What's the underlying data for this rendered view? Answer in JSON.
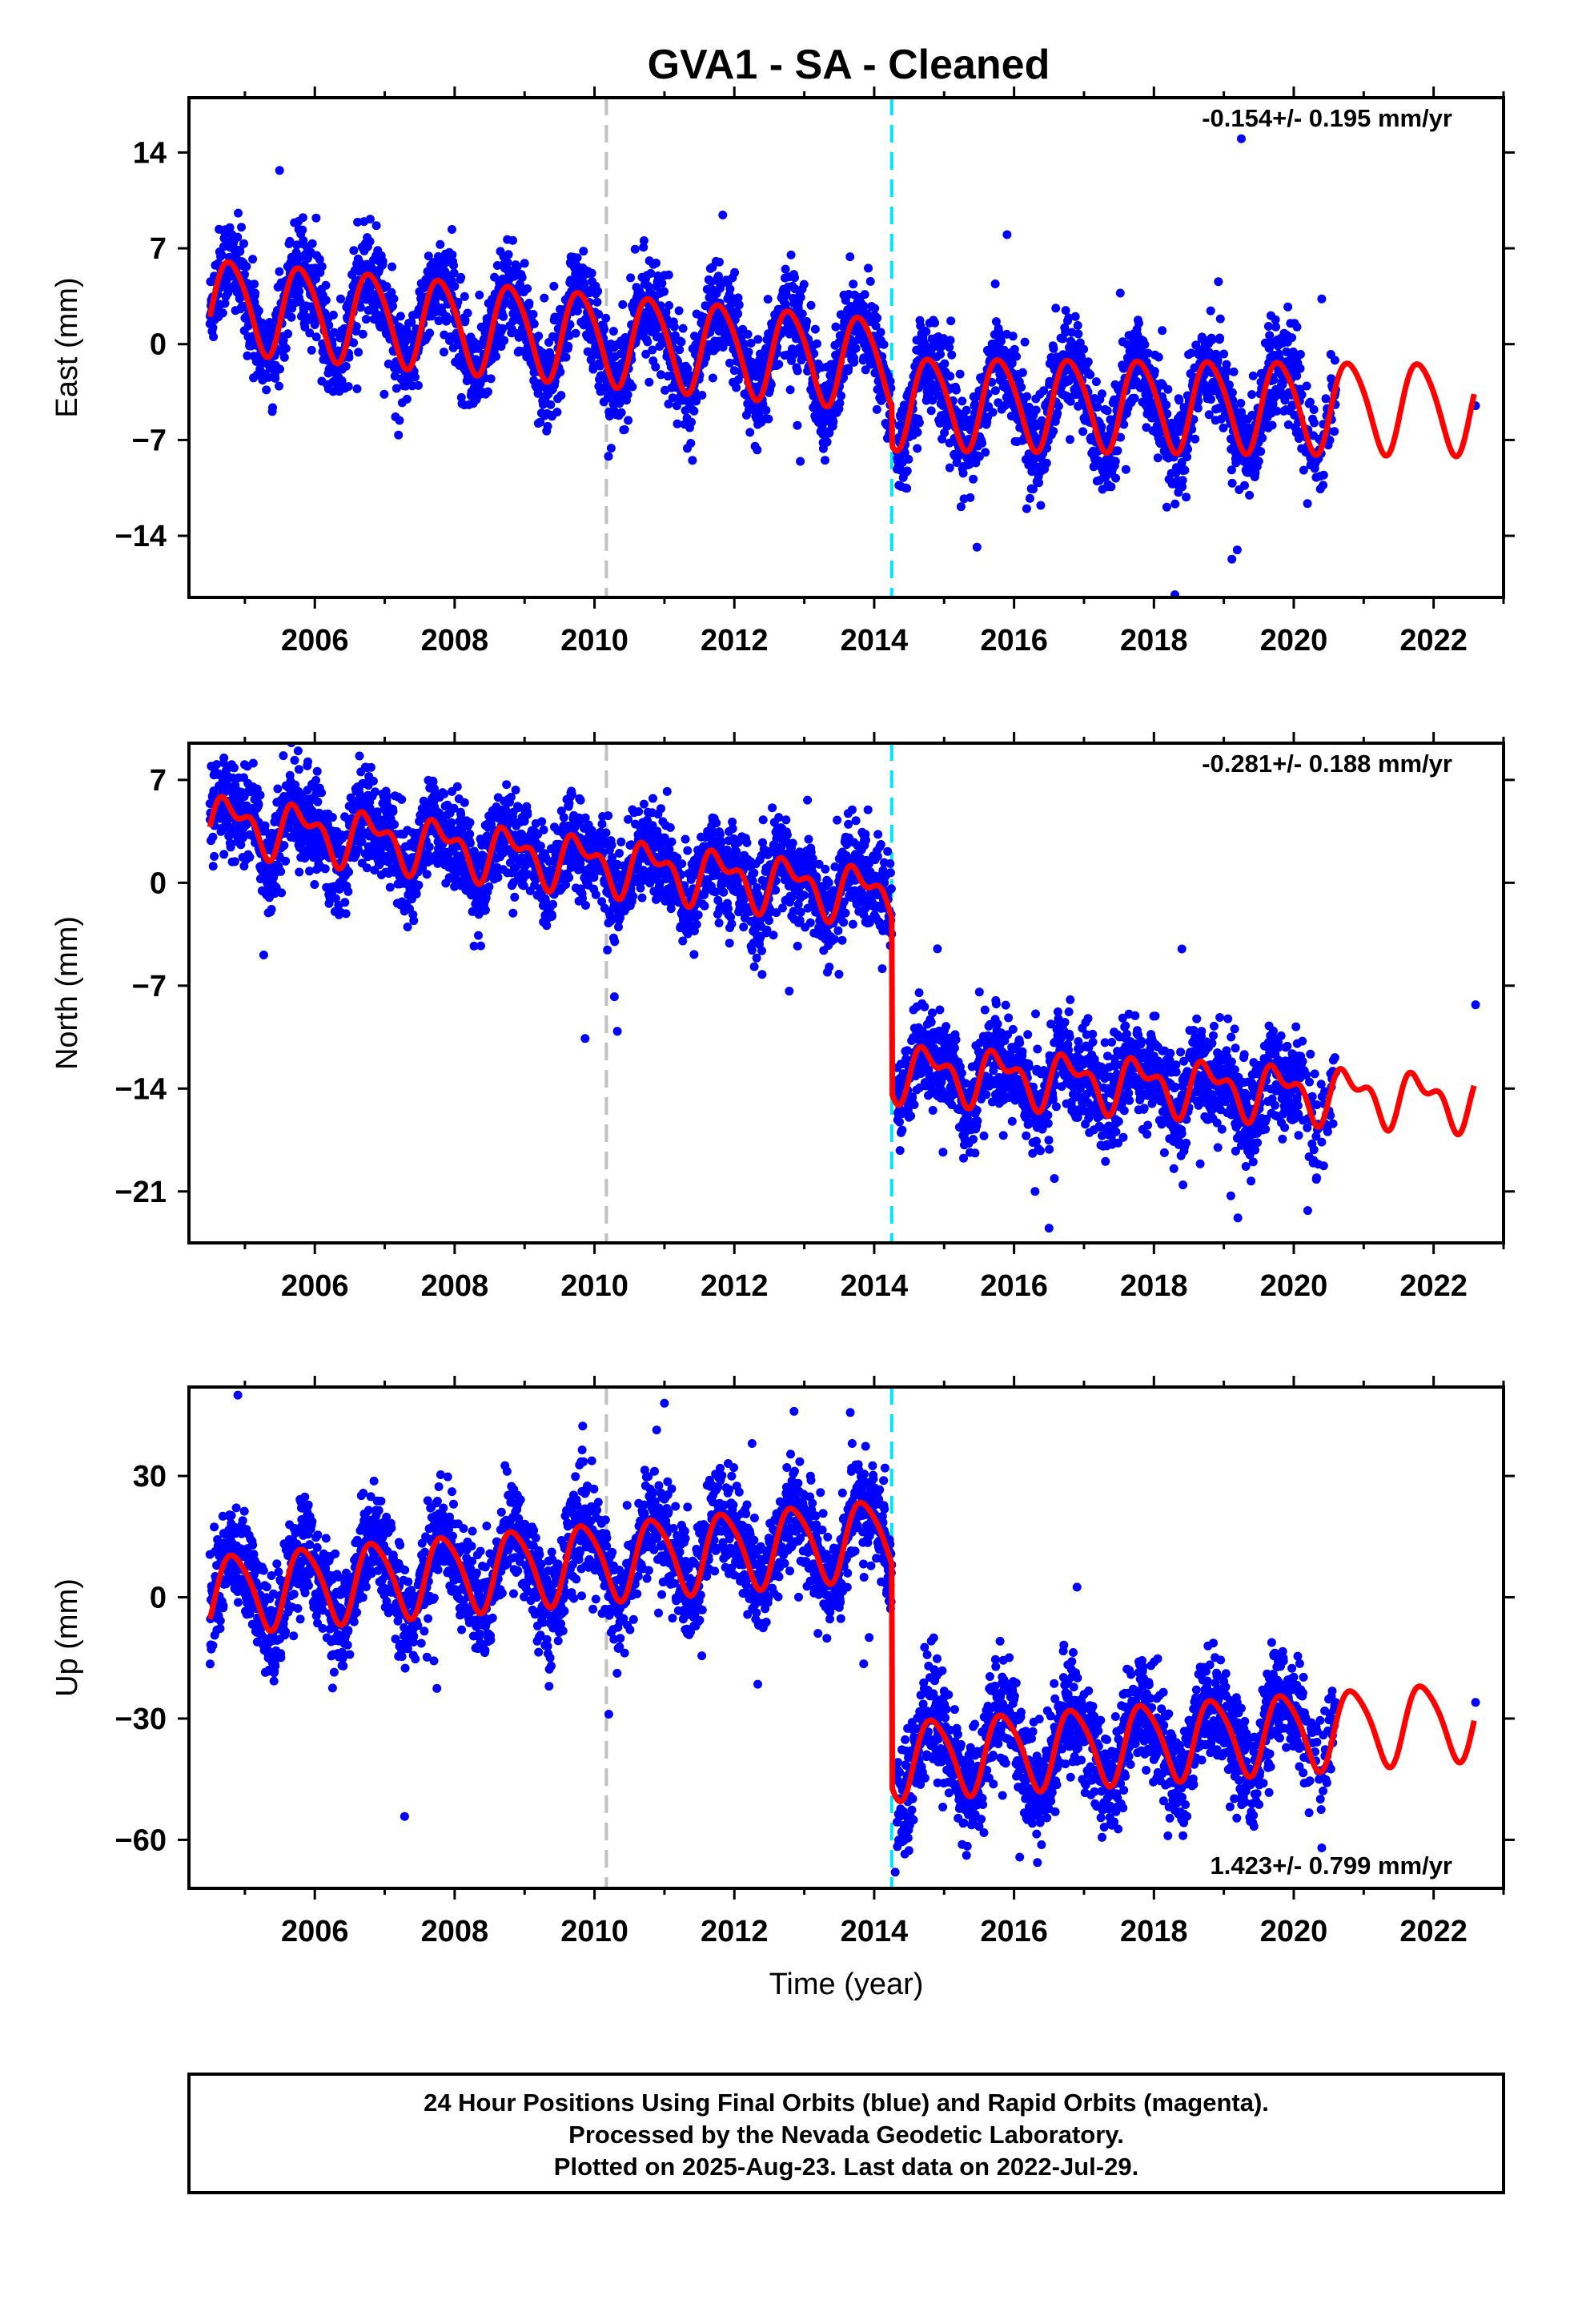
{
  "title": "GVA1  - SA - Cleaned",
  "colors": {
    "final_orbits": "#0000ff",
    "model": "#ff0000",
    "vline_gray": "#c0c0c0",
    "vline_cyan": "#00e5ff",
    "frame": "#000000"
  },
  "footer": {
    "line1": "24 Hour Positions Using Final Orbits (blue) and Rapid Orbits (magenta).",
    "line2": "Processed by the Nevada Geodetic Laboratory.",
    "line3": "Plotted on 2025-Aug-23. Last data on 2022-Jul-29."
  },
  "chart_data": [
    {
      "type": "scatter",
      "id": "east",
      "ylabel": "East (mm)",
      "xlabel": "",
      "rate": "-0.154+/- 0.195 mm/yr",
      "rate_position": "top-right",
      "xlim": [
        2004.2,
        2023.0
      ],
      "ylim": [
        -18.5,
        18.0
      ],
      "xticks": [
        2006,
        2008,
        2010,
        2012,
        2014,
        2016,
        2018,
        2020,
        2022
      ],
      "xtick_labels": [
        "2006",
        "2008",
        "2010",
        "2012",
        "2014",
        "2016",
        "2018",
        "2020",
        "2022"
      ],
      "yticks": [
        14,
        7,
        0,
        -7,
        -14
      ],
      "ytick_labels": [
        "14",
        "7",
        "0",
        "−7",
        "−14"
      ],
      "vlines": [
        2010.17,
        2014.25
      ],
      "data_range": [
        2004.5,
        2020.6
      ],
      "model_range": [
        2004.5,
        2022.58
      ],
      "model_segments": [
        {
          "from": 2004.5,
          "to": 2014.25,
          "offset": 3.0,
          "slope": -0.45,
          "t0": 2004.5
        },
        {
          "from": 2014.25,
          "to": 2022.58,
          "offset": -4.2,
          "slope": -0.05,
          "t0": 2014.25
        }
      ],
      "annual_amp": 3.3,
      "annual_phase": 0.55,
      "semi_amp": 0.4,
      "noise": 1.7,
      "outliers": [
        [
          2018.3,
          -18.3
        ],
        [
          2019.25,
          15.0
        ],
        [
          2022.6,
          -4.5
        ],
        [
          2010.2,
          -8.2
        ],
        [
          2020.4,
          3.3
        ],
        [
          2015.9,
          8.0
        ]
      ]
    },
    {
      "type": "scatter",
      "id": "north",
      "ylabel": "North (mm)",
      "xlabel": "",
      "rate": "-0.281+/- 0.188 mm/yr",
      "rate_position": "top-right",
      "xlim": [
        2004.2,
        2023.0
      ],
      "ylim": [
        -24.5,
        9.5
      ],
      "xticks": [
        2006,
        2008,
        2010,
        2012,
        2014,
        2016,
        2018,
        2020,
        2022
      ],
      "xtick_labels": [
        "2006",
        "2008",
        "2010",
        "2012",
        "2014",
        "2016",
        "2018",
        "2020",
        "2022"
      ],
      "yticks": [
        7,
        0,
        -7,
        -14,
        -21
      ],
      "ytick_labels": [
        "7",
        "0",
        "−7",
        "−14",
        "−21"
      ],
      "vlines": [
        2010.17,
        2014.25
      ],
      "data_range": [
        2004.5,
        2020.6
      ],
      "model_range": [
        2004.5,
        2022.58
      ],
      "model_segments": [
        {
          "from": 2004.5,
          "to": 2014.25,
          "offset": 4.2,
          "slope": -0.52,
          "t0": 2004.5
        },
        {
          "from": 2014.25,
          "to": 2022.58,
          "offset": -12.8,
          "slope": -0.25,
          "t0": 2014.25
        }
      ],
      "annual_amp": 1.5,
      "annual_phase": 0.55,
      "semi_amp": 0.9,
      "noise": 1.6,
      "outliers": [
        [
          2019.2,
          -22.8
        ],
        [
          2019.1,
          -21.3
        ],
        [
          2020.2,
          -22.3
        ],
        [
          2022.6,
          -8.3
        ],
        [
          2004.7,
          8.5
        ],
        [
          2018.4,
          -4.5
        ],
        [
          2016.3,
          -21.0
        ]
      ]
    },
    {
      "type": "scatter",
      "id": "up",
      "ylabel": "Up (mm)",
      "xlabel": "Time (year)",
      "rate": "1.423+/- 0.799 mm/yr",
      "rate_position": "bottom-right",
      "xlim": [
        2004.2,
        2023.0
      ],
      "ylim": [
        -72,
        52
      ],
      "xticks": [
        2006,
        2008,
        2010,
        2012,
        2014,
        2016,
        2018,
        2020,
        2022
      ],
      "xtick_labels": [
        "2006",
        "2008",
        "2010",
        "2012",
        "2014",
        "2016",
        "2018",
        "2020",
        "2022"
      ],
      "yticks": [
        30,
        0,
        -30,
        -60
      ],
      "ytick_labels": [
        "30",
        "0",
        "−30",
        "−60"
      ],
      "vlines": [
        2010.17,
        2014.25
      ],
      "data_range": [
        2004.5,
        2020.6
      ],
      "model_range": [
        2004.5,
        2022.58
      ],
      "model_segments": [
        {
          "from": 2004.5,
          "to": 2014.25,
          "offset": 1.0,
          "slope": 1.45,
          "t0": 2004.5
        },
        {
          "from": 2014.25,
          "to": 2022.58,
          "offset": -40.0,
          "slope": 1.2,
          "t0": 2014.25
        }
      ],
      "annual_amp": 9.5,
      "annual_phase": 0.6,
      "semi_amp": 1.5,
      "noise": 6.5,
      "outliers": [
        [
          2004.9,
          50.0
        ],
        [
          2014.3,
          -68.0
        ],
        [
          2018.2,
          -59.0
        ],
        [
          2020.4,
          -62.0
        ],
        [
          2022.6,
          -26.0
        ],
        [
          2016.9,
          2.5
        ],
        [
          2011.0,
          48.0
        ]
      ]
    }
  ]
}
